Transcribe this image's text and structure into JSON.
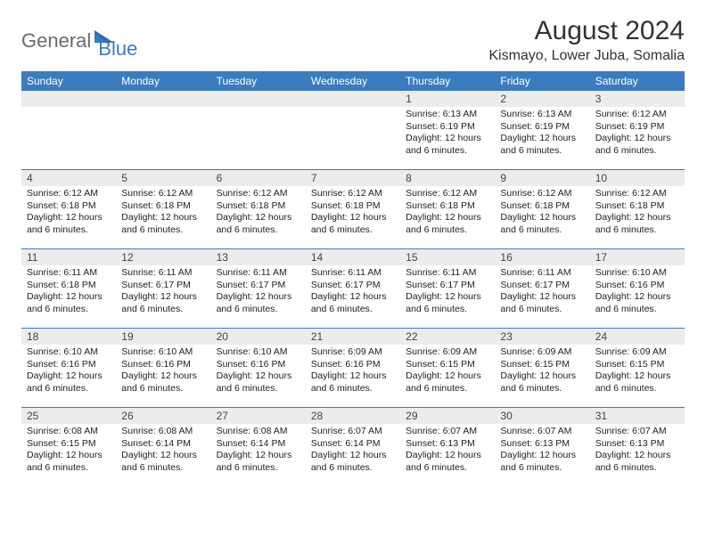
{
  "logo": {
    "text1": "General",
    "text2": "Blue"
  },
  "title": "August 2024",
  "location": "Kismayo, Lower Juba, Somalia",
  "colors": {
    "header_bg": "#3b7bbf",
    "header_text": "#ffffff",
    "daynum_bg": "#ececec",
    "border": "#3b7bbf",
    "logo_gray": "#6b6b6b",
    "logo_blue": "#3b7bbf"
  },
  "weekdays": [
    "Sunday",
    "Monday",
    "Tuesday",
    "Wednesday",
    "Thursday",
    "Friday",
    "Saturday"
  ],
  "weeks": [
    [
      null,
      null,
      null,
      null,
      {
        "n": "1",
        "sr": "6:13 AM",
        "ss": "6:19 PM",
        "dl": "12 hours and 6 minutes."
      },
      {
        "n": "2",
        "sr": "6:13 AM",
        "ss": "6:19 PM",
        "dl": "12 hours and 6 minutes."
      },
      {
        "n": "3",
        "sr": "6:12 AM",
        "ss": "6:19 PM",
        "dl": "12 hours and 6 minutes."
      }
    ],
    [
      {
        "n": "4",
        "sr": "6:12 AM",
        "ss": "6:18 PM",
        "dl": "12 hours and 6 minutes."
      },
      {
        "n": "5",
        "sr": "6:12 AM",
        "ss": "6:18 PM",
        "dl": "12 hours and 6 minutes."
      },
      {
        "n": "6",
        "sr": "6:12 AM",
        "ss": "6:18 PM",
        "dl": "12 hours and 6 minutes."
      },
      {
        "n": "7",
        "sr": "6:12 AM",
        "ss": "6:18 PM",
        "dl": "12 hours and 6 minutes."
      },
      {
        "n": "8",
        "sr": "6:12 AM",
        "ss": "6:18 PM",
        "dl": "12 hours and 6 minutes."
      },
      {
        "n": "9",
        "sr": "6:12 AM",
        "ss": "6:18 PM",
        "dl": "12 hours and 6 minutes."
      },
      {
        "n": "10",
        "sr": "6:12 AM",
        "ss": "6:18 PM",
        "dl": "12 hours and 6 minutes."
      }
    ],
    [
      {
        "n": "11",
        "sr": "6:11 AM",
        "ss": "6:18 PM",
        "dl": "12 hours and 6 minutes."
      },
      {
        "n": "12",
        "sr": "6:11 AM",
        "ss": "6:17 PM",
        "dl": "12 hours and 6 minutes."
      },
      {
        "n": "13",
        "sr": "6:11 AM",
        "ss": "6:17 PM",
        "dl": "12 hours and 6 minutes."
      },
      {
        "n": "14",
        "sr": "6:11 AM",
        "ss": "6:17 PM",
        "dl": "12 hours and 6 minutes."
      },
      {
        "n": "15",
        "sr": "6:11 AM",
        "ss": "6:17 PM",
        "dl": "12 hours and 6 minutes."
      },
      {
        "n": "16",
        "sr": "6:11 AM",
        "ss": "6:17 PM",
        "dl": "12 hours and 6 minutes."
      },
      {
        "n": "17",
        "sr": "6:10 AM",
        "ss": "6:16 PM",
        "dl": "12 hours and 6 minutes."
      }
    ],
    [
      {
        "n": "18",
        "sr": "6:10 AM",
        "ss": "6:16 PM",
        "dl": "12 hours and 6 minutes."
      },
      {
        "n": "19",
        "sr": "6:10 AM",
        "ss": "6:16 PM",
        "dl": "12 hours and 6 minutes."
      },
      {
        "n": "20",
        "sr": "6:10 AM",
        "ss": "6:16 PM",
        "dl": "12 hours and 6 minutes."
      },
      {
        "n": "21",
        "sr": "6:09 AM",
        "ss": "6:16 PM",
        "dl": "12 hours and 6 minutes."
      },
      {
        "n": "22",
        "sr": "6:09 AM",
        "ss": "6:15 PM",
        "dl": "12 hours and 6 minutes."
      },
      {
        "n": "23",
        "sr": "6:09 AM",
        "ss": "6:15 PM",
        "dl": "12 hours and 6 minutes."
      },
      {
        "n": "24",
        "sr": "6:09 AM",
        "ss": "6:15 PM",
        "dl": "12 hours and 6 minutes."
      }
    ],
    [
      {
        "n": "25",
        "sr": "6:08 AM",
        "ss": "6:15 PM",
        "dl": "12 hours and 6 minutes."
      },
      {
        "n": "26",
        "sr": "6:08 AM",
        "ss": "6:14 PM",
        "dl": "12 hours and 6 minutes."
      },
      {
        "n": "27",
        "sr": "6:08 AM",
        "ss": "6:14 PM",
        "dl": "12 hours and 6 minutes."
      },
      {
        "n": "28",
        "sr": "6:07 AM",
        "ss": "6:14 PM",
        "dl": "12 hours and 6 minutes."
      },
      {
        "n": "29",
        "sr": "6:07 AM",
        "ss": "6:13 PM",
        "dl": "12 hours and 6 minutes."
      },
      {
        "n": "30",
        "sr": "6:07 AM",
        "ss": "6:13 PM",
        "dl": "12 hours and 6 minutes."
      },
      {
        "n": "31",
        "sr": "6:07 AM",
        "ss": "6:13 PM",
        "dl": "12 hours and 6 minutes."
      }
    ]
  ],
  "labels": {
    "sunrise": "Sunrise:",
    "sunset": "Sunset:",
    "daylight": "Daylight:"
  }
}
